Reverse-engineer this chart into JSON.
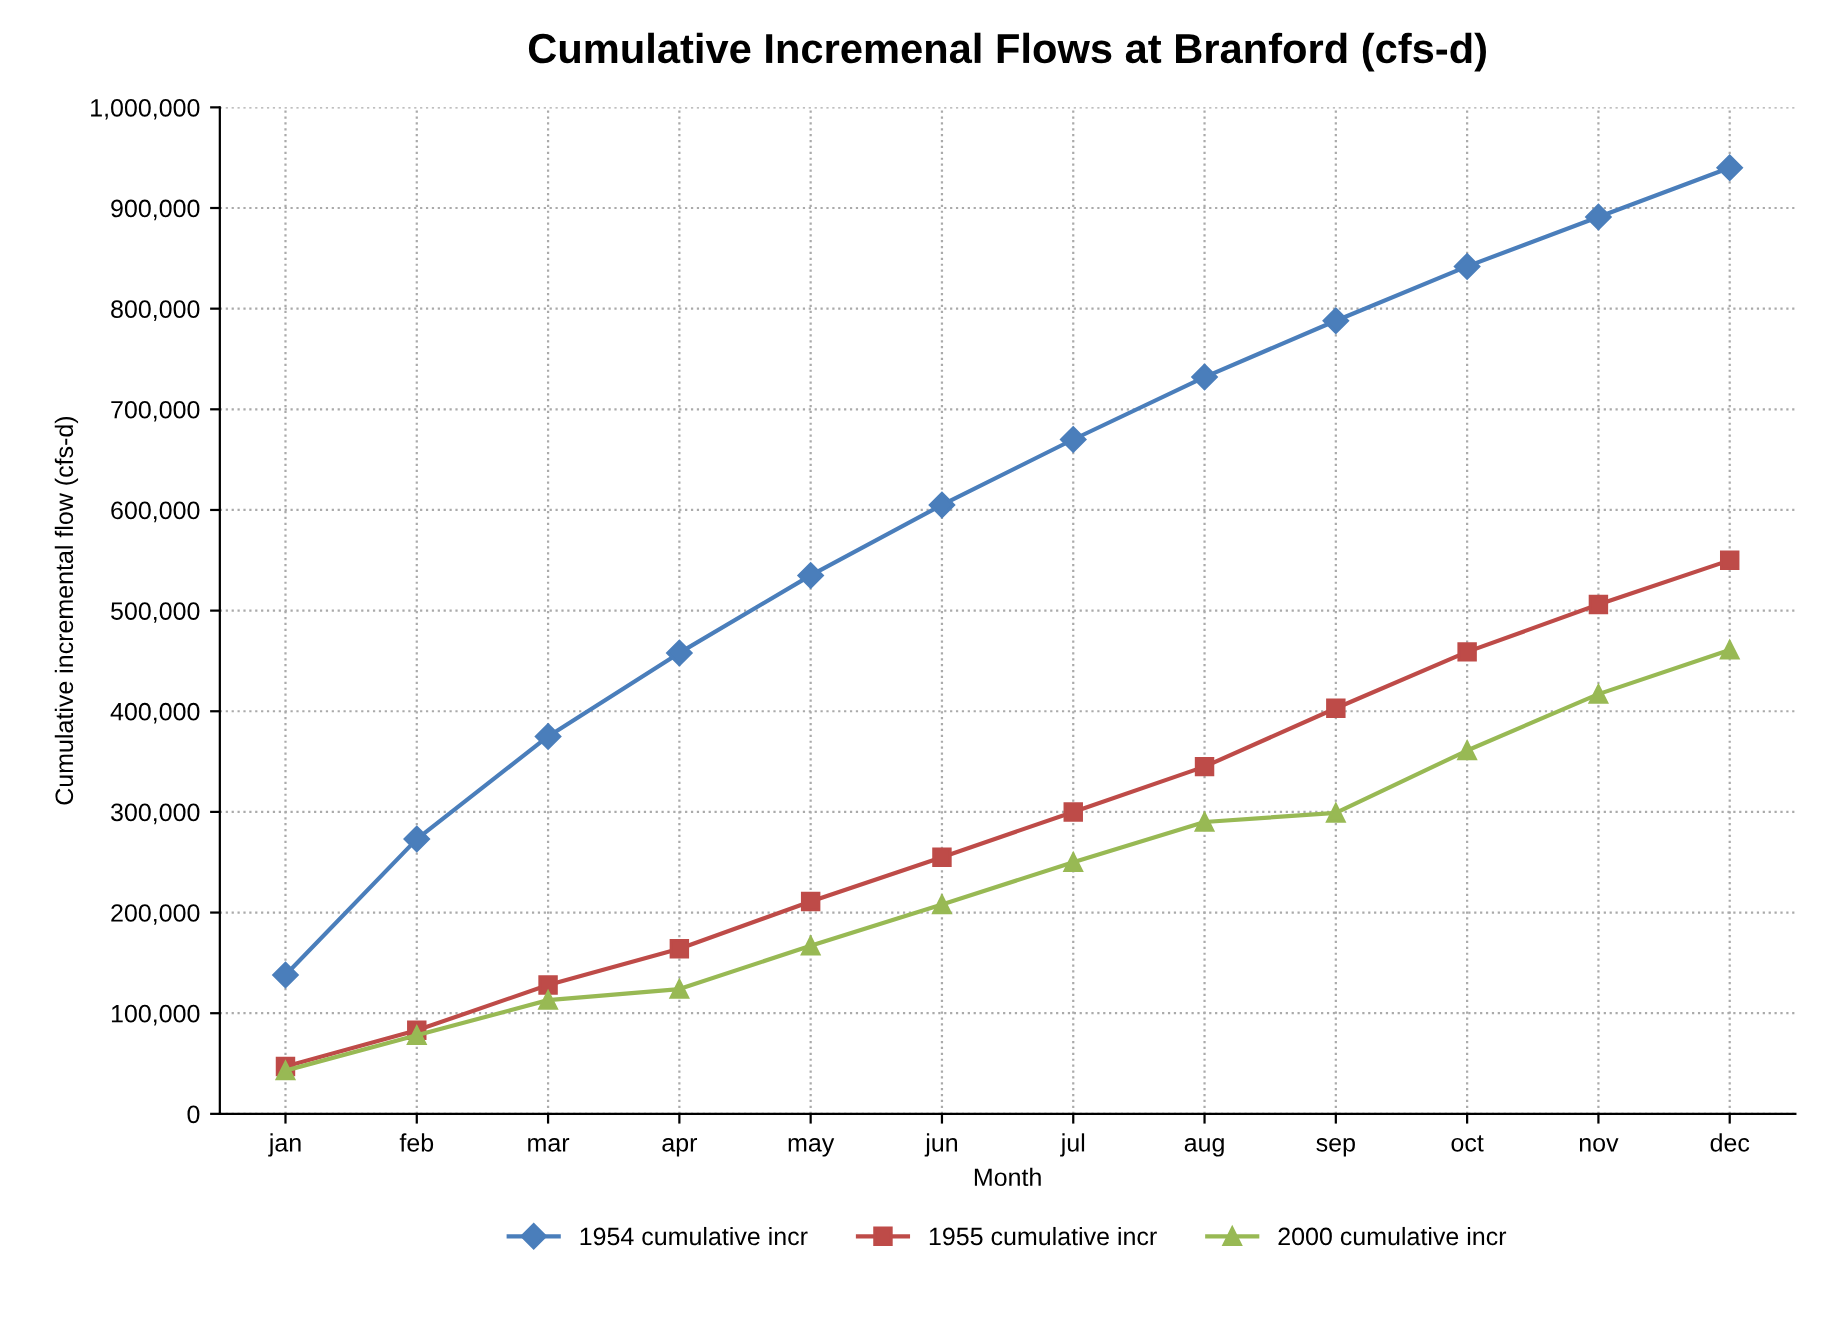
{
  "chart_data": {
    "type": "line",
    "title": "Cumulative Incremenal Flows at Branford (cfs-d)",
    "xlabel": "Month",
    "ylabel": "Cumulative incremental flow (cfs-d)",
    "categories": [
      "jan",
      "feb",
      "mar",
      "apr",
      "may",
      "jun",
      "jul",
      "aug",
      "sep",
      "oct",
      "nov",
      "dec"
    ],
    "series": [
      {
        "name": "1954 cumulative incr",
        "color": "#4a7ebb",
        "marker": "diamond",
        "values": [
          138000,
          273000,
          375000,
          458000,
          535000,
          605000,
          670000,
          732000,
          788000,
          842000,
          891000,
          940000
        ]
      },
      {
        "name": "1955 cumulative incr",
        "color": "#be4b48",
        "marker": "square",
        "values": [
          47000,
          83000,
          128000,
          164000,
          211000,
          255000,
          300000,
          345000,
          403000,
          459000,
          506000,
          550000
        ]
      },
      {
        "name": "2000 cumulative incr",
        "color": "#98b954",
        "marker": "triangle",
        "values": [
          43000,
          78000,
          113000,
          124000,
          167000,
          208000,
          250000,
          290000,
          299000,
          361000,
          417000,
          461000
        ]
      }
    ],
    "ylim": [
      0,
      1000000
    ],
    "yticks": [
      {
        "value": 0,
        "label": "0"
      },
      {
        "value": 100000,
        "label": "100,000"
      },
      {
        "value": 200000,
        "label": "200,000"
      },
      {
        "value": 300000,
        "label": "300,000"
      },
      {
        "value": 400000,
        "label": "400,000"
      },
      {
        "value": 500000,
        "label": "500,000"
      },
      {
        "value": 600000,
        "label": "600,000"
      },
      {
        "value": 700000,
        "label": "700,000"
      },
      {
        "value": 800000,
        "label": "800,000"
      },
      {
        "value": 900000,
        "label": "900,000"
      },
      {
        "value": 1000000,
        "label": "1,000,000"
      }
    ],
    "grid": true,
    "legend": "bottom",
    "line_style": "solid"
  }
}
